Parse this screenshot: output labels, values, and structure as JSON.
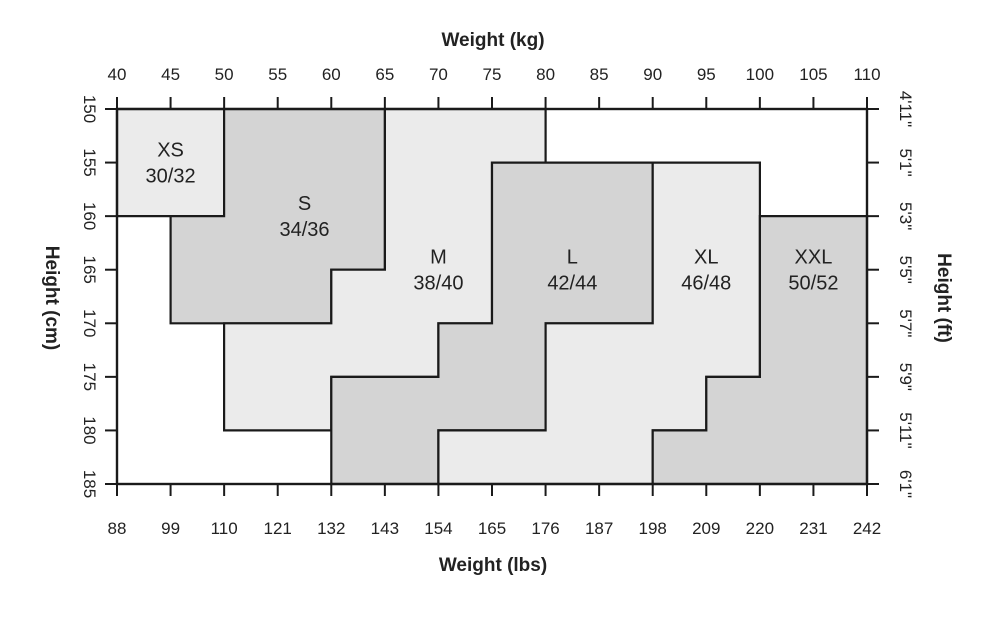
{
  "chart_data": {
    "type": "size-chart",
    "x_top_title": "Weight (kg)",
    "x_bottom_title": "Weight (lbs)",
    "y_left_title": "Height (cm)",
    "y_right_title": "Height (ft)",
    "x_kg_ticks": [
      "40",
      "45",
      "50",
      "55",
      "60",
      "65",
      "70",
      "75",
      "80",
      "85",
      "90",
      "95",
      "100",
      "105",
      "110"
    ],
    "x_lbs_ticks": [
      "88",
      "99",
      "110",
      "121",
      "132",
      "143",
      "154",
      "165",
      "176",
      "187",
      "198",
      "209",
      "220",
      "231",
      "242"
    ],
    "y_cm_ticks": [
      "150",
      "155",
      "160",
      "165",
      "170",
      "175",
      "180",
      "185"
    ],
    "y_ft_ticks": [
      "4'11\"",
      "5'1\"",
      "5'3\"",
      "5'5\"",
      "5'7\"",
      "5'9\"",
      "5'11\"",
      "6'1\""
    ],
    "xlim_kg": [
      40,
      110
    ],
    "ylim_cm": [
      150,
      185
    ],
    "regions": [
      {
        "size": "XS",
        "eu": "30/32",
        "color": "#ebebeb",
        "polygon": [
          [
            40,
            150
          ],
          [
            50,
            150
          ],
          [
            50,
            160
          ],
          [
            40,
            160
          ]
        ]
      },
      {
        "size": "S",
        "eu": "34/36",
        "color": "#d4d4d4",
        "polygon": [
          [
            50,
            150
          ],
          [
            65,
            150
          ],
          [
            65,
            165
          ],
          [
            60,
            165
          ],
          [
            60,
            170
          ],
          [
            45,
            170
          ],
          [
            45,
            160
          ],
          [
            50,
            160
          ]
        ]
      },
      {
        "size": "M",
        "eu": "38/40",
        "color": "#ebebeb",
        "polygon": [
          [
            65,
            150
          ],
          [
            80,
            150
          ],
          [
            80,
            155
          ],
          [
            75,
            155
          ],
          [
            75,
            170
          ],
          [
            70,
            170
          ],
          [
            70,
            175
          ],
          [
            60,
            175
          ],
          [
            60,
            180
          ],
          [
            50,
            180
          ],
          [
            50,
            170
          ],
          [
            60,
            170
          ],
          [
            60,
            165
          ],
          [
            65,
            165
          ]
        ]
      },
      {
        "size": "L",
        "eu": "42/44",
        "color": "#d4d4d4",
        "polygon": [
          [
            75,
            155
          ],
          [
            90,
            155
          ],
          [
            90,
            170
          ],
          [
            80,
            170
          ],
          [
            80,
            180
          ],
          [
            70,
            180
          ],
          [
            70,
            185
          ],
          [
            60,
            185
          ],
          [
            60,
            175
          ],
          [
            70,
            175
          ],
          [
            70,
            170
          ],
          [
            75,
            170
          ]
        ]
      },
      {
        "size": "XL",
        "eu": "46/48",
        "color": "#ebebeb",
        "polygon": [
          [
            90,
            155
          ],
          [
            100,
            155
          ],
          [
            100,
            175
          ],
          [
            95,
            175
          ],
          [
            95,
            180
          ],
          [
            90,
            180
          ],
          [
            90,
            185
          ],
          [
            70,
            185
          ],
          [
            70,
            180
          ],
          [
            80,
            180
          ],
          [
            80,
            170
          ],
          [
            90,
            170
          ]
        ]
      },
      {
        "size": "XXL",
        "eu": "50/52",
        "color": "#d4d4d4",
        "polygon": [
          [
            100,
            160
          ],
          [
            110,
            160
          ],
          [
            110,
            185
          ],
          [
            90,
            185
          ],
          [
            90,
            180
          ],
          [
            95,
            180
          ],
          [
            95,
            175
          ],
          [
            100,
            175
          ]
        ]
      }
    ],
    "labels": [
      {
        "size": "XS",
        "eu": "30/32",
        "kg": 45,
        "cm": 155
      },
      {
        "size": "S",
        "eu": "34/36",
        "kg": 57.5,
        "cm": 160
      },
      {
        "size": "M",
        "eu": "38/40",
        "kg": 70,
        "cm": 165
      },
      {
        "size": "L",
        "eu": "42/44",
        "kg": 82.5,
        "cm": 165
      },
      {
        "size": "XL",
        "eu": "46/48",
        "kg": 95,
        "cm": 165
      },
      {
        "size": "XXL",
        "eu": "50/52",
        "kg": 105,
        "cm": 165
      }
    ],
    "stroke_color": "#1a1a1a"
  }
}
